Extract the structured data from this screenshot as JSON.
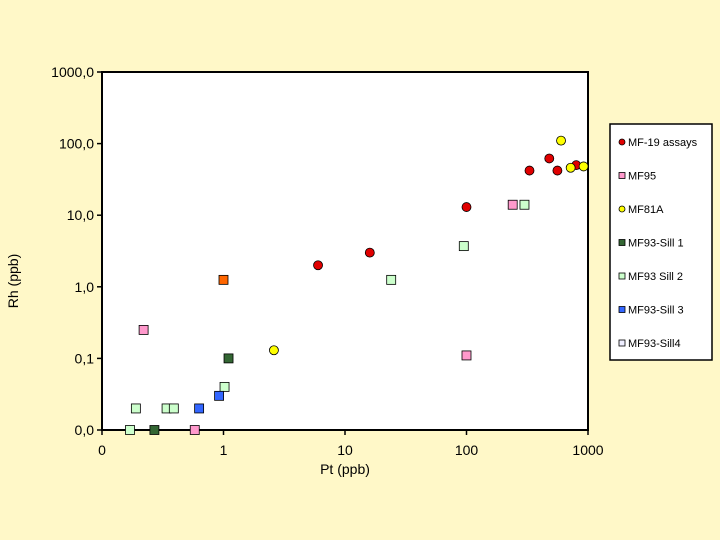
{
  "chart_data": {
    "type": "scatter",
    "title": "",
    "xlabel": "Pt (ppb)",
    "ylabel": "Rh (ppb)",
    "x_scale": "log",
    "y_scale": "log",
    "xlim": [
      0.1,
      1000
    ],
    "ylim": [
      0.01,
      1000
    ],
    "x_ticks": [
      0.1,
      1,
      10,
      100,
      1000
    ],
    "x_tick_labels": [
      "0",
      "1",
      "10",
      "100",
      "1000"
    ],
    "y_ticks": [
      0.01,
      0.1,
      1,
      10,
      100,
      1000
    ],
    "y_tick_labels": [
      "0,0",
      "0,1",
      "1,0",
      "10,0",
      "100,0",
      "1000,0"
    ],
    "grid": false,
    "legend_position": "right",
    "plot_background": "#FFFFFF",
    "page_background": "#FFF8C8",
    "series": [
      {
        "name": "MF-19 assays",
        "marker": "circle",
        "color": "#E00000",
        "points": [
          [
            6,
            2
          ],
          [
            16,
            3
          ],
          [
            100,
            13
          ],
          [
            330,
            42
          ],
          [
            480,
            62
          ],
          [
            560,
            42
          ],
          [
            800,
            50
          ]
        ]
      },
      {
        "name": "MF95",
        "marker": "square",
        "color": "#FF99CC",
        "points": [
          [
            0.22,
            0.25
          ],
          [
            240,
            14
          ],
          [
            100,
            0.11
          ],
          [
            0.58,
            0.01
          ]
        ]
      },
      {
        "name": "MF81A",
        "marker": "circle",
        "color": "#FFFF00",
        "points": [
          [
            2.6,
            0.13
          ],
          [
            600,
            110
          ],
          [
            720,
            46
          ],
          [
            920,
            48
          ]
        ]
      },
      {
        "name": "MF93-Sill 1",
        "marker": "square",
        "color": "#336633",
        "points": [
          [
            1.1,
            0.1
          ],
          [
            0.27,
            0.01
          ]
        ]
      },
      {
        "name": "MF93 Sill 2",
        "marker": "square",
        "color": "#CCFFCC",
        "points": [
          [
            0.17,
            0.01
          ],
          [
            0.19,
            0.02
          ],
          [
            0.34,
            0.02
          ],
          [
            0.39,
            0.02
          ],
          [
            1.02,
            0.04
          ],
          [
            24,
            1.25
          ],
          [
            95,
            3.7
          ],
          [
            300,
            14
          ]
        ]
      },
      {
        "name": "MF93-Sill 3",
        "marker": "square",
        "color": "#3366FF",
        "points": [
          [
            0.63,
            0.02
          ],
          [
            0.92,
            0.03
          ]
        ]
      },
      {
        "name": "MF93-Sill4",
        "marker": "square",
        "color": "#EEEEFF",
        "points": []
      }
    ],
    "extra_points": [
      {
        "marker": "square",
        "color": "#FF6600",
        "x": 1.0,
        "y": 1.25
      }
    ]
  }
}
